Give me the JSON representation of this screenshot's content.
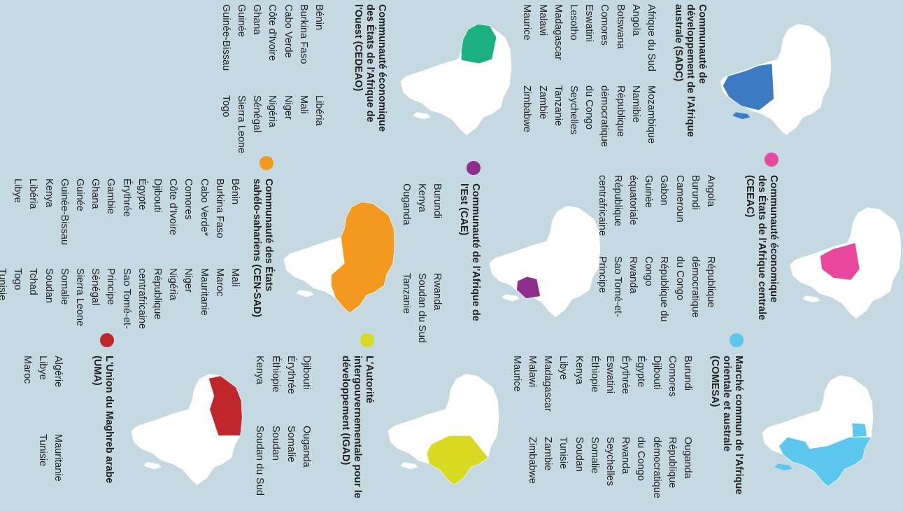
{
  "panels": [
    {
      "id": "sadc",
      "color": "#3b7cc4",
      "title": "Communauté de développement de l'Afrique australe (SADC)",
      "col1": [
        "Afrique du Sud",
        "Angola",
        "Botswana",
        "Comores",
        "Eswatini",
        "Lesotho",
        "Madagascar",
        "Malawi",
        "Maurice"
      ],
      "col2": [
        "Mozambique",
        "Namibie",
        "République démocratique du Congo",
        "Seychelles",
        "Tanzanie",
        "Zambie",
        "Zimbabwe"
      ]
    },
    {
      "id": "cedeao",
      "color": "#1cb081",
      "title": "Communauté économique des États de l'Afrique de l'Ouest (CEDEAO)",
      "col1": [
        "Bénin",
        "Burkina Faso",
        "Cabo Verde",
        "Côte d'Ivoire",
        "Ghana",
        "Guinée",
        "Guinée-Bissau"
      ],
      "col2": [
        "Libéria",
        "Mali",
        "Niger",
        "Nigéria",
        "Sénégal",
        "Sierra Leone",
        "Togo"
      ]
    },
    {
      "id": "ceeac",
      "color": "#e8479b",
      "title": "Communauté économique des États de l'Afrique centrale (CEEAC)",
      "col1": [
        "Angola",
        "Burundi",
        "Cameroun",
        "Gabon",
        "Guinée équatoriale",
        "République centrafricaine"
      ],
      "col2": [
        "République démocratique du Congo",
        "République du Congo",
        "Rwanda",
        "Sao Tomé-et-Principe",
        "Tchad"
      ]
    },
    {
      "id": "cae",
      "color": "#8e2e8e",
      "title": "Communauté de l'Afrique de l'Est (CAE)",
      "col1": [
        "Burundi",
        "Kenya",
        "Ouganda"
      ],
      "col2": [
        "Rwanda",
        "Soudan du Sud",
        "Tanzanie"
      ]
    },
    {
      "id": "censad",
      "color": "#f39a1e",
      "title": "Communauté des États sahélo-sahariens (CEN-SAD)",
      "col1": [
        "Bénin",
        "Burkina Faso",
        "Cabo Verde*",
        "Comores",
        "Côte d'Ivoire",
        "Djibouti",
        "Égypte",
        "Érythrée",
        "Gambie",
        "Ghana",
        "Guinée",
        "Guinée-Bissau",
        "Kenya",
        "Libéria",
        "Libye"
      ],
      "col2": [
        "Mali",
        "Maroc",
        "Mauritanie",
        "Niger",
        "Nigéria",
        "République centrafricaine",
        "Sao Tomé-et-Principe",
        "Sénégal",
        "Sierra Leone",
        "Somalie",
        "Soudan",
        "Tchad",
        "Togo",
        "Tunisie"
      ]
    },
    {
      "id": "comesa",
      "color": "#5cc8f0",
      "title": "Marché commun de l'Afrique orientale et australe (COMESA)",
      "col1": [
        "Burundi",
        "Comores",
        "Djibouti",
        "Égypte",
        "Érythrée",
        "Eswatini",
        "Éthiopie",
        "Kenya",
        "Libye",
        "Madagascar",
        "Malawi",
        "Maurice"
      ],
      "col2": [
        "Ouganda",
        "République démocratique du Congo",
        "Rwanda",
        "Seychelles",
        "Somalie",
        "Soudan",
        "Tunisie",
        "Zambie",
        "Zimbabwe"
      ]
    },
    {
      "id": "igad",
      "color": "#d7da21",
      "title": "L'Autorité intergouvernementale pour le développement (IGAD)",
      "col1": [
        "Djibouti",
        "Érythrée",
        "Éthiopie",
        "Kenya"
      ],
      "col2": [
        "Ouganda",
        "Somalie",
        "Soudan",
        "Soudan du Sud"
      ]
    },
    {
      "id": "uma",
      "color": "#c0272d",
      "title": "L'Union du Maghreb arabe (UMA)",
      "col1": [
        "Algérie",
        "Libye",
        "Maroc"
      ],
      "col2": [
        "Mauritanie",
        "Tunisie"
      ]
    }
  ]
}
